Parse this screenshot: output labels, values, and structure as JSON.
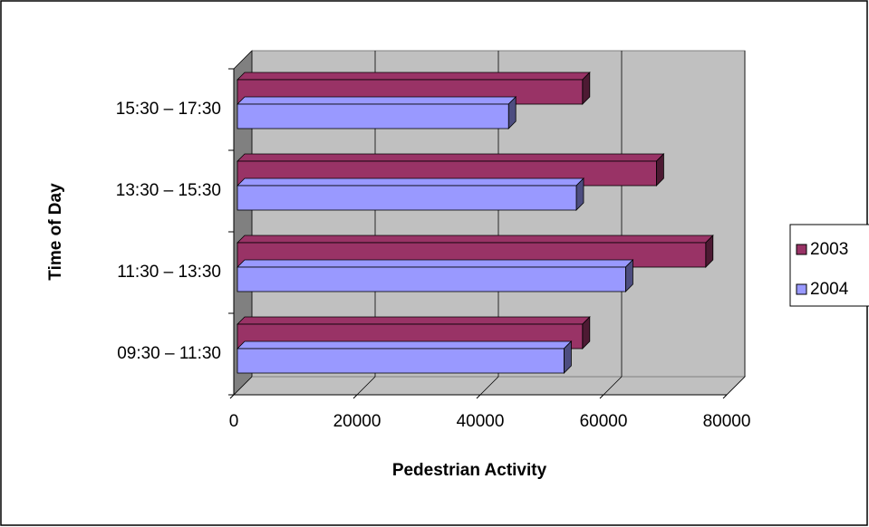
{
  "chart_data": {
    "type": "bar",
    "orientation": "horizontal",
    "xlabel": "Pedestrian Activity",
    "ylabel": "Time of Day",
    "categories": [
      "09:30 – 11:30",
      "11:30 – 13:30",
      "13:30 – 15:30",
      "15:30 – 17:30"
    ],
    "series": [
      {
        "name": "2003",
        "color": "#993366",
        "values": [
          56000,
          76000,
          68000,
          56000
        ]
      },
      {
        "name": "2004",
        "color": "#9999ff",
        "values": [
          53000,
          63000,
          55000,
          44000
        ]
      }
    ],
    "xlim": [
      0,
      80000
    ],
    "xticks": [
      0,
      20000,
      40000,
      60000,
      80000
    ],
    "grid": true,
    "legend": "right"
  }
}
